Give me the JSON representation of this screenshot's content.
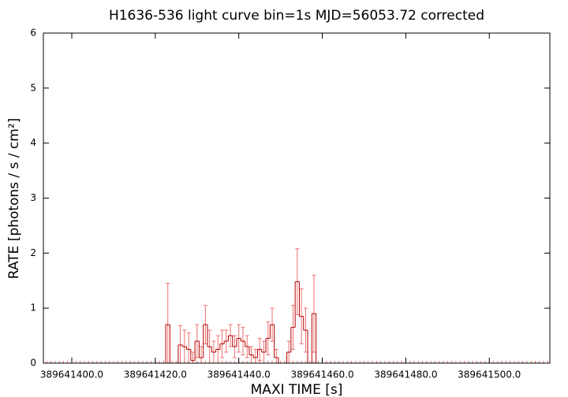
{
  "chart_data": {
    "type": "errorbar-histogram",
    "title": "H1636-536 light curve bin=1s MJD=56053.72 corrected",
    "x_label": "MAXI TIME [s]",
    "y_label": "RATE [photons / s / cm²]",
    "xlim": [
      389641393.2,
      389641514.5
    ],
    "ylim": [
      0,
      6
    ],
    "xticks": [
      {
        "value": 389641400,
        "label": "389641400.0"
      },
      {
        "value": 389641420,
        "label": "389641420.0"
      },
      {
        "value": 389641440,
        "label": "389641440.0"
      },
      {
        "value": 389641460,
        "label": "389641460.0"
      },
      {
        "value": 389641480,
        "label": "389641480.0"
      },
      {
        "value": 389641500,
        "label": "389641500.0"
      }
    ],
    "yticks": [
      0,
      1,
      2,
      3,
      4,
      5,
      6
    ],
    "line_color": "#b00000",
    "error_color": "#f07070",
    "x": [
      389641394,
      389641395,
      389641396,
      389641397,
      389641398,
      389641399,
      389641400,
      389641401,
      389641402,
      389641403,
      389641404,
      389641405,
      389641406,
      389641407,
      389641408,
      389641409,
      389641410,
      389641411,
      389641412,
      389641413,
      389641414,
      389641415,
      389641416,
      389641417,
      389641418,
      389641419,
      389641420,
      389641421,
      389641422,
      389641423,
      389641424,
      389641425,
      389641426,
      389641427,
      389641428,
      389641429,
      389641430,
      389641431,
      389641432,
      389641433,
      389641434,
      389641435,
      389641436,
      389641437,
      389641438,
      389641439,
      389641440,
      389641441,
      389641442,
      389641443,
      389641444,
      389641445,
      389641446,
      389641447,
      389641448,
      389641449,
      389641450,
      389641451,
      389641452,
      389641453,
      389641454,
      389641455,
      389641456,
      389641457,
      389641458,
      389641459,
      389641460,
      389641461,
      389641462,
      389641463,
      389641464,
      389641465,
      389641466,
      389641467,
      389641468,
      389641469,
      389641470,
      389641471,
      389641472,
      389641473,
      389641474,
      389641475,
      389641476,
      389641477,
      389641478,
      389641479,
      389641480,
      389641481,
      389641482,
      389641483,
      389641484,
      389641485,
      389641486,
      389641487,
      389641488,
      389641489,
      389641490,
      389641491,
      389641492,
      389641493,
      389641494,
      389641495,
      389641496,
      389641497,
      389641498,
      389641499,
      389641500,
      389641501,
      389641502,
      389641503,
      389641504,
      389641505,
      389641506,
      389641507,
      389641508,
      389641509,
      389641510,
      389641511,
      389641512,
      389641513,
      389641514
    ],
    "values": [
      0,
      0,
      0,
      0,
      0,
      0,
      0,
      0,
      0,
      0,
      0,
      0,
      0,
      0,
      0,
      0,
      0,
      0,
      0,
      0,
      0,
      0,
      0,
      0,
      0,
      0,
      0,
      0,
      0,
      0.7,
      0,
      0,
      0.33,
      0.3,
      0.25,
      0.05,
      0.4,
      0.1,
      0.7,
      0.3,
      0.2,
      0.25,
      0.35,
      0.4,
      0.5,
      0.3,
      0.45,
      0.4,
      0.3,
      0.15,
      0.1,
      0.25,
      0.2,
      0.45,
      0.7,
      0.1,
      0,
      0,
      0.2,
      0.65,
      1.48,
      0.85,
      0.6,
      0,
      0.9,
      0,
      0,
      0,
      0,
      0,
      0,
      0,
      0,
      0,
      0,
      0,
      0,
      0,
      0,
      0,
      0,
      0,
      0,
      0,
      0,
      0,
      0,
      0,
      0,
      0,
      0,
      0,
      0,
      0,
      0,
      0,
      0,
      0,
      0,
      0,
      0,
      0,
      0,
      0,
      0,
      0,
      0,
      0,
      0,
      0,
      0,
      0,
      0,
      0,
      0,
      0,
      0,
      0,
      0,
      0,
      0
    ],
    "errors": [
      0,
      0,
      0,
      0,
      0,
      0,
      0,
      0,
      0,
      0,
      0,
      0,
      0,
      0,
      0,
      0,
      0,
      0,
      0,
      0,
      0,
      0,
      0,
      0,
      0,
      0,
      0,
      0,
      0,
      0.75,
      0,
      0,
      0.35,
      0.3,
      0.3,
      0.15,
      0.3,
      0.2,
      0.35,
      0.3,
      0.2,
      0.25,
      0.25,
      0.2,
      0.2,
      0.2,
      0.25,
      0.25,
      0.2,
      0.15,
      0.15,
      0.2,
      0.2,
      0.3,
      0.3,
      0.15,
      0,
      0,
      0.2,
      0.4,
      0.6,
      0.5,
      0.4,
      0,
      0.7,
      0,
      0,
      0,
      0,
      0,
      0,
      0,
      0,
      0,
      0,
      0,
      0,
      0,
      0,
      0,
      0,
      0,
      0,
      0,
      0,
      0,
      0,
      0,
      0,
      0,
      0,
      0,
      0,
      0,
      0,
      0,
      0,
      0,
      0,
      0,
      0,
      0,
      0,
      0,
      0,
      0,
      0,
      0,
      0,
      0,
      0,
      0,
      0,
      0,
      0,
      0,
      0,
      0,
      0,
      0,
      0
    ]
  }
}
